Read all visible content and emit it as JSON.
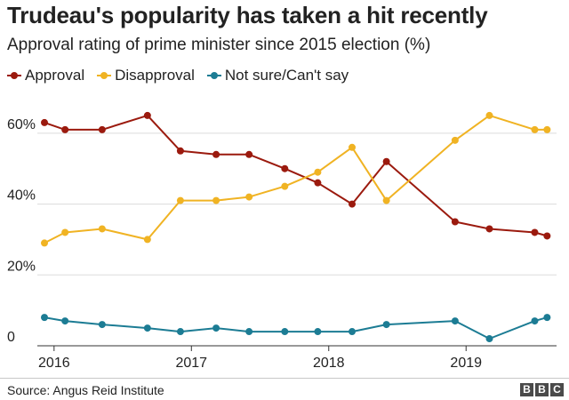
{
  "title": "Trudeau's popularity has taken a hit recently",
  "subtitle": "Approval rating of prime minister since 2015 election (%)",
  "source": "Source: Angus Reid Institute",
  "logo": [
    "B",
    "B",
    "C"
  ],
  "chart_data": {
    "type": "line",
    "title": "Trudeau's popularity has taken a hit recently",
    "subtitle": "Approval rating of prime minister since 2015 election (%)",
    "xlabel": "",
    "ylabel": "",
    "xlim": [
      2015.93,
      2019.62
    ],
    "ylim": [
      0,
      70
    ],
    "x_ticks": [
      2016,
      2017,
      2018,
      2019
    ],
    "x_tick_labels": [
      "2016",
      "2017",
      "2018",
      "2019"
    ],
    "y_ticks": [
      0,
      20,
      40,
      60
    ],
    "y_tick_labels": [
      "0",
      "20%",
      "40%",
      "60%"
    ],
    "grid": "horizontal",
    "legend": "top-left",
    "series": [
      {
        "name": "Approval",
        "color": "#9b1a0e",
        "x": [
          2015.93,
          2016.08,
          2016.35,
          2016.68,
          2016.92,
          2017.18,
          2017.42,
          2017.68,
          2017.92,
          2018.17,
          2018.42,
          2018.92,
          2019.17,
          2019.5,
          2019.59
        ],
        "y": [
          63,
          61,
          61,
          65,
          55,
          54,
          54,
          50,
          46,
          40,
          52,
          35,
          33,
          32,
          31
        ]
      },
      {
        "name": "Disapproval",
        "color": "#f0b323",
        "x": [
          2015.93,
          2016.08,
          2016.35,
          2016.68,
          2016.92,
          2017.18,
          2017.42,
          2017.68,
          2017.92,
          2018.17,
          2018.42,
          2018.92,
          2019.17,
          2019.5,
          2019.59
        ],
        "y": [
          29,
          32,
          33,
          30,
          41,
          41,
          42,
          45,
          49,
          56,
          41,
          58,
          65,
          61,
          61
        ]
      },
      {
        "name": "Not sure/Can't say",
        "color": "#1c7c94",
        "x": [
          2015.93,
          2016.08,
          2016.35,
          2016.68,
          2016.92,
          2017.18,
          2017.42,
          2017.68,
          2017.92,
          2018.17,
          2018.42,
          2018.92,
          2019.17,
          2019.5,
          2019.59
        ],
        "y": [
          8,
          7,
          6,
          5,
          4,
          5,
          4,
          4,
          4,
          4,
          6,
          7,
          2,
          7,
          8
        ]
      }
    ]
  }
}
